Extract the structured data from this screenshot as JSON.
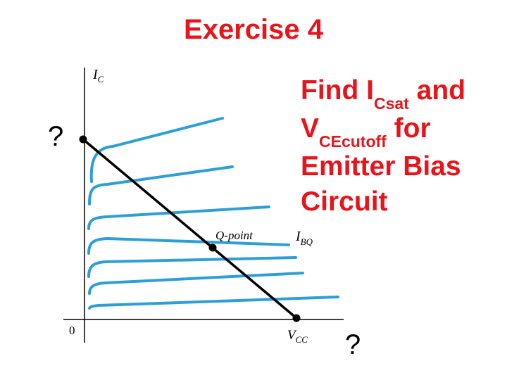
{
  "title": "Exercise 4",
  "task": {
    "line1_main": "Find I",
    "line1_sub": "Csat",
    "line1_rest": " and",
    "line2_main": "V",
    "line2_sub": "CEcutoff",
    "line2_rest": " for",
    "line3": "Emitter Bias",
    "line4": "Circuit"
  },
  "question_marks": {
    "left": "?",
    "bottom": "?"
  },
  "graph": {
    "y_axis_main": "I",
    "y_axis_sub": "C",
    "origin": "0",
    "x_end_main": "V",
    "x_end_sub": "CC",
    "q_point": "Q-point",
    "ibq_main": "I",
    "ibq_sub": "BQ",
    "curve_color": "#2e9fd6",
    "load_line_color": "#000000"
  }
}
